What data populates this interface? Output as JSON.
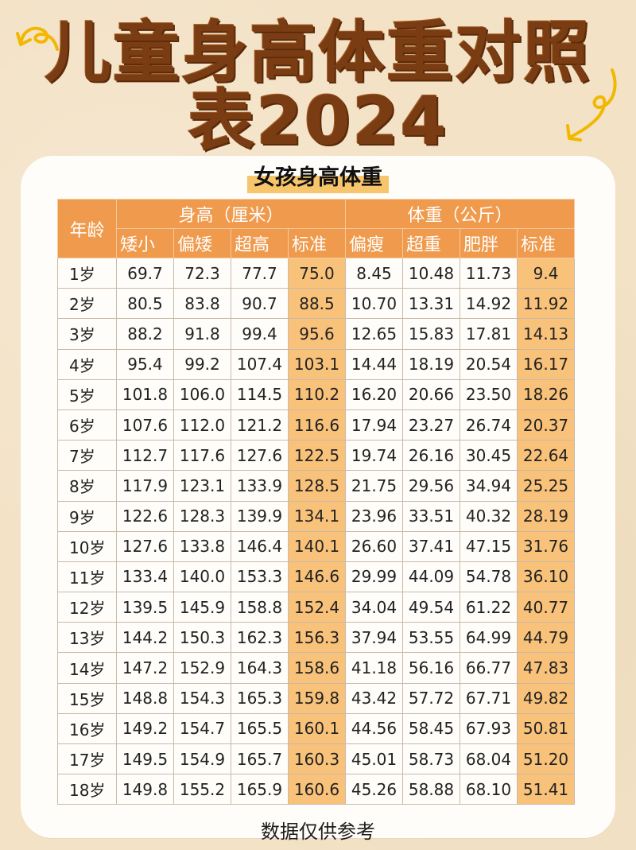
{
  "title": {
    "line1": "儿童身高体重对照",
    "line2": "表2024"
  },
  "subtitle": "女孩身高体重",
  "table": {
    "age_header": "年龄",
    "height_group": "身高（厘米）",
    "weight_group": "体重（公斤）",
    "height_cols": [
      "矮小",
      "偏矮",
      "超高",
      "标准"
    ],
    "weight_cols": [
      "偏瘦",
      "超重",
      "肥胖",
      "标准"
    ],
    "rows": [
      {
        "age": "1岁",
        "h": [
          "69.7",
          "72.3",
          "77.7",
          "75.0"
        ],
        "w": [
          "8.45",
          "10.48",
          "11.73",
          "9.4"
        ]
      },
      {
        "age": "2岁",
        "h": [
          "80.5",
          "83.8",
          "90.7",
          "88.5"
        ],
        "w": [
          "10.70",
          "13.31",
          "14.92",
          "11.92"
        ]
      },
      {
        "age": "3岁",
        "h": [
          "88.2",
          "91.8",
          "99.4",
          "95.6"
        ],
        "w": [
          "12.65",
          "15.83",
          "17.81",
          "14.13"
        ]
      },
      {
        "age": "4岁",
        "h": [
          "95.4",
          "99.2",
          "107.4",
          "103.1"
        ],
        "w": [
          "14.44",
          "18.19",
          "20.54",
          "16.17"
        ]
      },
      {
        "age": "5岁",
        "h": [
          "101.8",
          "106.0",
          "114.5",
          "110.2"
        ],
        "w": [
          "16.20",
          "20.66",
          "23.50",
          "18.26"
        ]
      },
      {
        "age": "6岁",
        "h": [
          "107.6",
          "112.0",
          "121.2",
          "116.6"
        ],
        "w": [
          "17.94",
          "23.27",
          "26.74",
          "20.37"
        ]
      },
      {
        "age": "7岁",
        "h": [
          "112.7",
          "117.6",
          "127.6",
          "122.5"
        ],
        "w": [
          "19.74",
          "26.16",
          "30.45",
          "22.64"
        ]
      },
      {
        "age": "8岁",
        "h": [
          "117.9",
          "123.1",
          "133.9",
          "128.5"
        ],
        "w": [
          "21.75",
          "29.56",
          "34.94",
          "25.25"
        ]
      },
      {
        "age": "9岁",
        "h": [
          "122.6",
          "128.3",
          "139.9",
          "134.1"
        ],
        "w": [
          "23.96",
          "33.51",
          "40.32",
          "28.19"
        ]
      },
      {
        "age": "10岁",
        "h": [
          "127.6",
          "133.8",
          "146.4",
          "140.1"
        ],
        "w": [
          "26.60",
          "37.41",
          "47.15",
          "31.76"
        ]
      },
      {
        "age": "11岁",
        "h": [
          "133.4",
          "140.0",
          "153.3",
          "146.6"
        ],
        "w": [
          "29.99",
          "44.09",
          "54.78",
          "36.10"
        ]
      },
      {
        "age": "12岁",
        "h": [
          "139.5",
          "145.9",
          "158.8",
          "152.4"
        ],
        "w": [
          "34.04",
          "49.54",
          "61.22",
          "40.77"
        ]
      },
      {
        "age": "13岁",
        "h": [
          "144.2",
          "150.3",
          "162.3",
          "156.3"
        ],
        "w": [
          "37.94",
          "53.55",
          "64.99",
          "44.79"
        ]
      },
      {
        "age": "14岁",
        "h": [
          "147.2",
          "152.9",
          "164.3",
          "158.6"
        ],
        "w": [
          "41.18",
          "56.16",
          "66.77",
          "47.83"
        ]
      },
      {
        "age": "15岁",
        "h": [
          "148.8",
          "154.3",
          "165.3",
          "159.8"
        ],
        "w": [
          "43.42",
          "57.72",
          "67.71",
          "49.82"
        ]
      },
      {
        "age": "16岁",
        "h": [
          "149.2",
          "154.7",
          "165.5",
          "160.1"
        ],
        "w": [
          "44.56",
          "58.45",
          "67.93",
          "50.81"
        ]
      },
      {
        "age": "17岁",
        "h": [
          "149.5",
          "154.9",
          "165.7",
          "160.3"
        ],
        "w": [
          "45.01",
          "58.73",
          "68.04",
          "51.20"
        ]
      },
      {
        "age": "18岁",
        "h": [
          "149.8",
          "155.2",
          "165.9",
          "160.6"
        ],
        "w": [
          "45.26",
          "58.88",
          "68.10",
          "51.41"
        ]
      }
    ]
  },
  "footnote": "数据仅供参考",
  "colors": {
    "title": "#7a3c12",
    "header_bg": "#ef9a4c",
    "standard_col_bg": "#f9c27a",
    "arrow": "#f2b800",
    "background": "#f3e2c6",
    "card": "#fffdf9"
  },
  "decor": {
    "left_icon": "curly-arrow-icon",
    "right_icon": "curly-arrow-icon"
  }
}
